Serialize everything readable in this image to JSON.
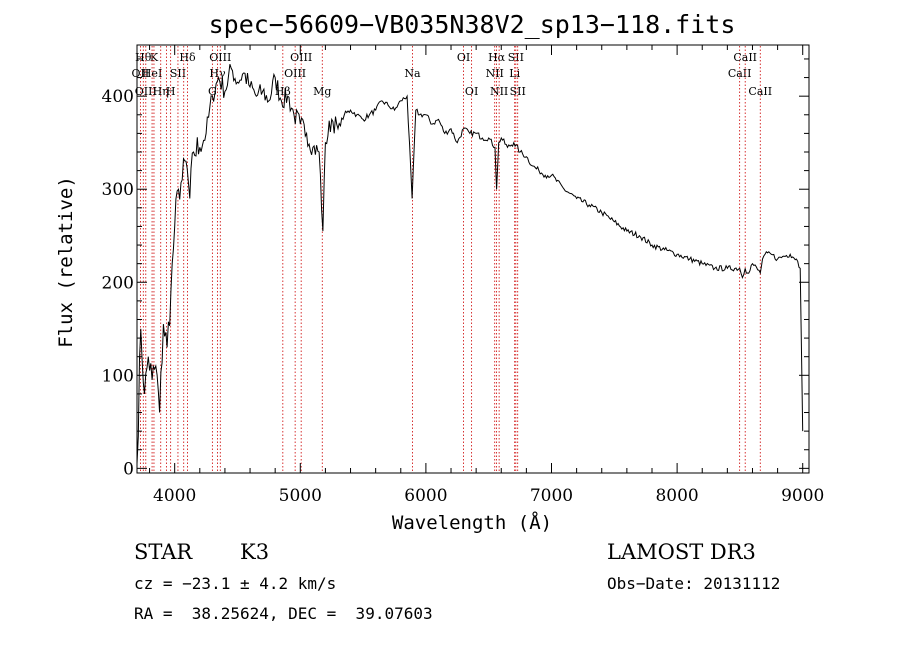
{
  "chart_data": {
    "type": "line",
    "title": "spec−56609−VB035N38V2_sp13−118.fits",
    "xlabel": "Wavelength (Å)",
    "ylabel": "Flux (relative)",
    "xlim": [
      3700,
      9050
    ],
    "ylim": [
      -5,
      455
    ],
    "x_ticks": [
      4000,
      5000,
      6000,
      7000,
      8000,
      9000
    ],
    "y_ticks": [
      0,
      100,
      200,
      300,
      400
    ],
    "series": [
      {
        "name": "flux",
        "x": [
          3700,
          3730,
          3760,
          3790,
          3820,
          3850,
          3880,
          3910,
          3940,
          3970,
          4000,
          4030,
          4060,
          4090,
          4120,
          4150,
          4200,
          4250,
          4300,
          4350,
          4400,
          4450,
          4500,
          4550,
          4600,
          4650,
          4700,
          4750,
          4800,
          4850,
          4900,
          4950,
          5000,
          5050,
          5100,
          5150,
          5180,
          5200,
          5250,
          5300,
          5350,
          5400,
          5450,
          5500,
          5550,
          5600,
          5650,
          5700,
          5750,
          5800,
          5850,
          5890,
          5920,
          5950,
          6000,
          6050,
          6100,
          6150,
          6200,
          6250,
          6300,
          6350,
          6400,
          6450,
          6500,
          6550,
          6563,
          6580,
          6600,
          6650,
          6700,
          6750,
          6800,
          6850,
          6900,
          6950,
          7000,
          7100,
          7200,
          7300,
          7400,
          7500,
          7600,
          7700,
          7800,
          7900,
          8000,
          8100,
          8200,
          8300,
          8400,
          8498,
          8520,
          8542,
          8560,
          8600,
          8662,
          8680,
          8700,
          8750,
          8800,
          8850,
          8900,
          8950,
          8980,
          9000
        ],
        "y": [
          5,
          150,
          80,
          120,
          95,
          110,
          60,
          155,
          130,
          190,
          260,
          300,
          310,
          330,
          290,
          340,
          345,
          360,
          400,
          420,
          405,
          430,
          415,
          425,
          410,
          400,
          405,
          395,
          420,
          395,
          400,
          380,
          370,
          360,
          345,
          340,
          255,
          350,
          375,
          365,
          380,
          385,
          380,
          375,
          380,
          385,
          395,
          390,
          385,
          395,
          400,
          290,
          385,
          380,
          380,
          370,
          375,
          360,
          365,
          350,
          365,
          360,
          360,
          355,
          355,
          345,
          300,
          350,
          355,
          345,
          350,
          340,
          335,
          325,
          320,
          315,
          315,
          300,
          290,
          283,
          275,
          265,
          255,
          250,
          240,
          235,
          230,
          225,
          220,
          215,
          215,
          215,
          205,
          215,
          210,
          220,
          210,
          225,
          230,
          230,
          225,
          228,
          230,
          225,
          215,
          40
        ]
      }
    ],
    "spectral_lines": [
      {
        "wl": 3750,
        "label": "Hθ",
        "row": 1
      },
      {
        "wl": 3727,
        "label": "OII",
        "row": 2
      },
      {
        "wl": 3770,
        "label": "OIII",
        "row": 3
      },
      {
        "wl": 3835,
        "label": "K",
        "row": 1
      },
      {
        "wl": 3820,
        "label": "HeI",
        "row": 2
      },
      {
        "wl": 3889,
        "label": "Hη",
        "row": 3
      },
      {
        "wl": 3934,
        "label": "",
        "row": 0
      },
      {
        "wl": 3968,
        "label": "H",
        "row": 3
      },
      {
        "wl": 4026,
        "label": "SII",
        "row": 2
      },
      {
        "wl": 4072,
        "label": "",
        "row": 0
      },
      {
        "wl": 4102,
        "label": "Hδ",
        "row": 1
      },
      {
        "wl": 4300,
        "label": "G",
        "row": 3
      },
      {
        "wl": 4341,
        "label": "Hγ",
        "row": 2
      },
      {
        "wl": 4363,
        "label": "OIII",
        "row": 1
      },
      {
        "wl": 4861,
        "label": "Hβ",
        "row": 3
      },
      {
        "wl": 4959,
        "label": "OIII",
        "row": 2
      },
      {
        "wl": 5007,
        "label": "OIII",
        "row": 1
      },
      {
        "wl": 5175,
        "label": "Mg",
        "row": 3
      },
      {
        "wl": 5893,
        "label": "Na",
        "row": 2
      },
      {
        "wl": 6300,
        "label": "OI",
        "row": 1
      },
      {
        "wl": 6364,
        "label": "OI",
        "row": 3
      },
      {
        "wl": 6548,
        "label": "NII",
        "row": 2
      },
      {
        "wl": 6563,
        "label": "Hα",
        "row": 1
      },
      {
        "wl": 6583,
        "label": "NII",
        "row": 3
      },
      {
        "wl": 6707,
        "label": "Li",
        "row": 2
      },
      {
        "wl": 6716,
        "label": "SII",
        "row": 1
      },
      {
        "wl": 6731,
        "label": "SII",
        "row": 3
      },
      {
        "wl": 8498,
        "label": "CaII",
        "row": 2
      },
      {
        "wl": 8542,
        "label": "CaII",
        "row": 1
      },
      {
        "wl": 8662,
        "label": "CaII",
        "row": 3
      }
    ]
  },
  "info": {
    "object_class": "STAR",
    "subclass": "K3",
    "survey": "LAMOST DR3",
    "cz": "cz = −23.1 ± 4.2 km/s",
    "obs_date": "Obs−Date: 20131112",
    "coords": "RA =  38.25624, DEC =  39.07603"
  },
  "colors": {
    "axis": "#000000",
    "spectrum": "#000000",
    "line_marker": "#cc0000"
  }
}
